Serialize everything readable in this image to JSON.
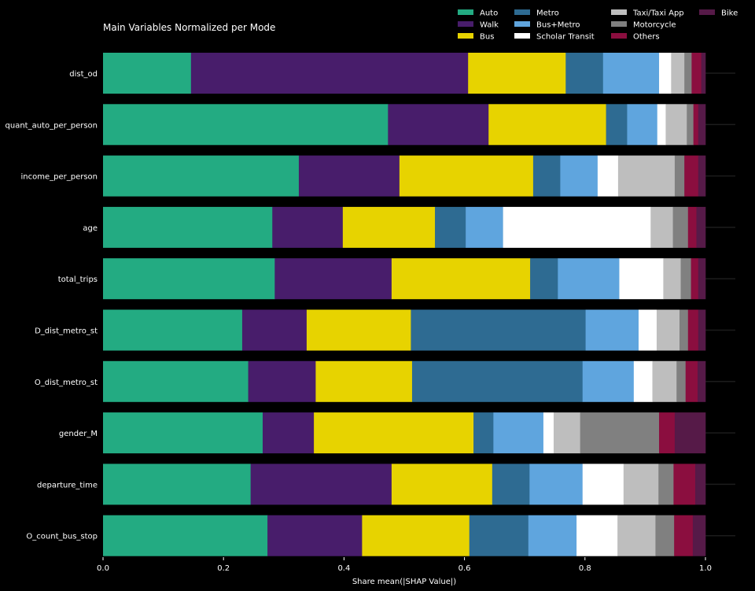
{
  "chart_data": {
    "type": "bar",
    "orientation": "horizontal",
    "stacked": true,
    "title": "Main Variables Normalized per Mode",
    "xlabel": "Share mean(|SHAP Value|)",
    "ylabel": "",
    "xlim": [
      0,
      1
    ],
    "xticks": [
      "0.0",
      "0.2",
      "0.4",
      "0.6",
      "0.8",
      "1.0"
    ],
    "legend_position": "top-right",
    "grid": false,
    "categories": [
      "dist_od",
      "quant_auto_per_person",
      "income_per_person",
      "age",
      "total_trips",
      "D_dist_metro_st",
      "O_dist_metro_st",
      "gender_M",
      "departure_time",
      "O_count_bus_stop"
    ],
    "series": [
      {
        "name": "Auto",
        "color": "#23ab82",
        "values": [
          0.146,
          0.473,
          0.325,
          0.281,
          0.285,
          0.231,
          0.241,
          0.265,
          0.245,
          0.273
        ]
      },
      {
        "name": "Walk",
        "color": "#481d6b",
        "values": [
          0.46,
          0.167,
          0.167,
          0.117,
          0.194,
          0.107,
          0.112,
          0.085,
          0.234,
          0.157
        ]
      },
      {
        "name": "Bus",
        "color": "#e7d300",
        "values": [
          0.162,
          0.195,
          0.222,
          0.153,
          0.23,
          0.173,
          0.16,
          0.265,
          0.167,
          0.178
        ]
      },
      {
        "name": "Metro",
        "color": "#2e6b92",
        "values": [
          0.062,
          0.035,
          0.045,
          0.051,
          0.046,
          0.29,
          0.283,
          0.033,
          0.062,
          0.098
        ]
      },
      {
        "name": "Bus+Metro",
        "color": "#5fa5de",
        "values": [
          0.093,
          0.05,
          0.062,
          0.062,
          0.102,
          0.088,
          0.085,
          0.083,
          0.088,
          0.08
        ]
      },
      {
        "name": "Scholar Transit",
        "color": "#ffffff",
        "values": [
          0.02,
          0.014,
          0.034,
          0.245,
          0.073,
          0.03,
          0.031,
          0.017,
          0.068,
          0.068
        ]
      },
      {
        "name": "Taxi/Taxi App",
        "color": "#bebebe",
        "values": [
          0.022,
          0.035,
          0.094,
          0.037,
          0.029,
          0.038,
          0.04,
          0.044,
          0.058,
          0.063
        ]
      },
      {
        "name": "Motorcycle",
        "color": "#808080",
        "values": [
          0.012,
          0.011,
          0.016,
          0.025,
          0.017,
          0.014,
          0.015,
          0.131,
          0.025,
          0.031
        ]
      },
      {
        "name": "Others",
        "color": "#8b0e3f",
        "values": [
          0.016,
          0.008,
          0.023,
          0.014,
          0.012,
          0.017,
          0.02,
          0.026,
          0.036,
          0.031
        ]
      },
      {
        "name": "Bike",
        "color": "#561a48",
        "values": [
          0.007,
          0.012,
          0.012,
          0.015,
          0.012,
          0.012,
          0.013,
          0.051,
          0.017,
          0.021
        ]
      }
    ]
  }
}
